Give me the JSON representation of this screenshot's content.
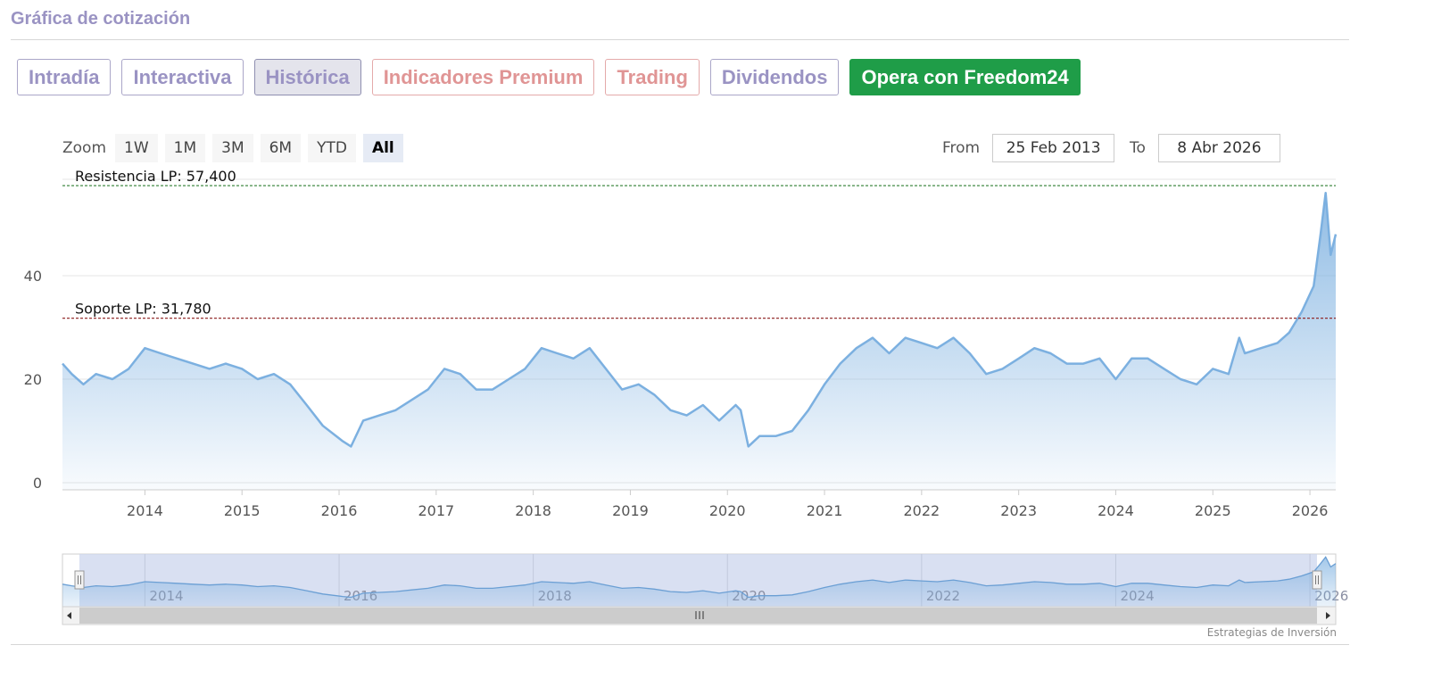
{
  "header": {
    "title": "Gráfica de cotización"
  },
  "tabs": [
    {
      "label": "Intradía"
    },
    {
      "label": "Interactiva"
    },
    {
      "label": "Histórica"
    },
    {
      "label": "Indicadores Premium"
    },
    {
      "label": "Trading"
    },
    {
      "label": "Dividendos"
    },
    {
      "label": "Opera con Freedom24"
    }
  ],
  "toolbar": {
    "zoom_label": "Zoom",
    "zoom_buttons": [
      "1W",
      "1M",
      "3M",
      "6M",
      "YTD",
      "All"
    ],
    "from_label": "From",
    "from_value": "25 Feb 2013",
    "to_label": "To",
    "to_value": "8 Abr 2026"
  },
  "colors": {
    "line": "#7cb0e0",
    "resistance": "#2e7d32",
    "support": "#8b1a1a",
    "cta": "#1f9d48"
  },
  "chart_data": {
    "type": "area",
    "grid": true,
    "ylim": [
      0,
      57.4
    ],
    "y_ticks": [
      "0",
      "20",
      "40"
    ],
    "x_tick_labels": [
      "2014",
      "2015",
      "2016",
      "2017",
      "2018",
      "2019",
      "2020",
      "2021",
      "2022",
      "2023",
      "2024",
      "2025",
      "2026"
    ],
    "reference_lines": [
      {
        "label": "Resistencia LP: 57,400",
        "value": 57.4
      },
      {
        "label": "Soporte LP: 31,780",
        "value": 31.78
      }
    ],
    "series": [
      {
        "x": [
          "2013-02-25",
          "2013-04-01",
          "2013-05-15",
          "2013-07-01",
          "2013-09-01",
          "2013-11-01",
          "2014-01-01",
          "2014-03-01",
          "2014-05-01",
          "2014-07-01",
          "2014-09-01",
          "2014-11-01",
          "2015-01-01",
          "2015-03-01",
          "2015-05-01",
          "2015-07-01",
          "2015-09-01",
          "2015-11-01",
          "2016-01-15",
          "2016-02-15",
          "2016-04-01",
          "2016-06-01",
          "2016-08-01",
          "2016-10-01",
          "2016-12-01",
          "2017-02-01",
          "2017-04-01",
          "2017-06-01",
          "2017-08-01",
          "2017-10-01",
          "2017-12-01",
          "2018-02-01",
          "2018-04-01",
          "2018-06-01",
          "2018-08-01",
          "2018-10-01",
          "2018-12-01",
          "2019-02-01",
          "2019-04-01",
          "2019-06-01",
          "2019-08-01",
          "2019-10-01",
          "2019-12-01",
          "2020-02-01",
          "2020-02-20",
          "2020-03-20",
          "2020-05-01",
          "2020-07-01",
          "2020-09-01",
          "2020-11-01",
          "2021-01-01",
          "2021-03-01",
          "2021-05-01",
          "2021-07-01",
          "2021-09-01",
          "2021-11-01",
          "2022-01-01",
          "2022-03-01",
          "2022-05-01",
          "2022-07-01",
          "2022-09-01",
          "2022-11-01",
          "2023-01-01",
          "2023-03-01",
          "2023-05-01",
          "2023-07-01",
          "2023-09-01",
          "2023-11-01",
          "2024-01-01",
          "2024-03-01",
          "2024-05-01",
          "2024-07-01",
          "2024-09-01",
          "2024-11-01",
          "2025-01-01",
          "2025-03-01",
          "2025-04-10",
          "2025-05-01",
          "2025-07-01",
          "2025-09-01",
          "2025-10-15",
          "2025-12-01",
          "2026-01-15",
          "2026-02-10",
          "2026-03-01",
          "2026-03-20",
          "2026-04-08"
        ],
        "y": [
          23,
          21,
          19,
          21,
          20,
          22,
          26,
          25,
          24,
          23,
          22,
          23,
          22,
          20,
          21,
          19,
          15,
          11,
          8,
          7,
          12,
          13,
          14,
          16,
          18,
          22,
          21,
          18,
          18,
          20,
          22,
          26,
          25,
          24,
          26,
          22,
          18,
          19,
          17,
          14,
          13,
          15,
          12,
          15,
          14,
          7,
          9,
          9,
          10,
          14,
          19,
          23,
          26,
          28,
          25,
          28,
          27,
          26,
          28,
          25,
          21,
          22,
          24,
          26,
          25,
          23,
          23,
          24,
          20,
          24,
          24,
          22,
          20,
          19,
          22,
          21,
          28,
          25,
          26,
          27,
          29,
          33,
          38,
          48,
          56,
          44,
          48
        ]
      }
    ]
  }
}
